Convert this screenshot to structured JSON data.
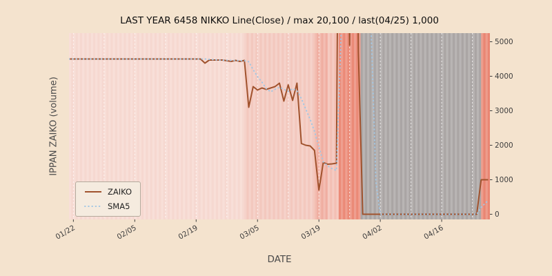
{
  "colors": {
    "figure_bg": "#f4e3ce",
    "plot_bg": "#f6d8d0",
    "grid": "#ffffff",
    "gray_band": "#9c9c9c",
    "tick_text": "#3d3d3d",
    "label_text": "#4a4a4a",
    "legend_bg": "#f5ebdf",
    "legend_border": "#b4aa9c"
  },
  "chart_data": {
    "type": "line",
    "title": "LAST YEAR 6458 NIKKO Line(Close) / max 20,100 / last(04/25) 1,000",
    "xlabel": "DATE",
    "ylabel": "IPPAN ZAIKO (volume)",
    "x_ticks": [
      {
        "label": "01/22",
        "day": 0
      },
      {
        "label": "02/05",
        "day": 14
      },
      {
        "label": "02/19",
        "day": 28
      },
      {
        "label": "03/05",
        "day": 42
      },
      {
        "label": "03/19",
        "day": 56
      },
      {
        "label": "04/02",
        "day": 70
      },
      {
        "label": "04/16",
        "day": 84
      }
    ],
    "y_ticks": [
      0,
      1000,
      2000,
      3000,
      4000,
      5000
    ],
    "xlim": [
      -1,
      95
    ],
    "ylim": [
      -150,
      5250
    ],
    "grid_interval_days": 7,
    "grid_on": true,
    "legend": {
      "position": "lower left",
      "entries": [
        "ZAIKO",
        "SMA5"
      ]
    },
    "max_value": 20100,
    "last_value": 1000,
    "last_date": "04/25",
    "series": [
      {
        "name": "ZAIKO",
        "color": "#a0522d",
        "style": "solid",
        "width": 2,
        "x": [
          -1,
          29,
          30,
          31,
          34,
          36,
          37,
          38,
          39,
          40,
          41,
          42,
          43,
          44,
          45,
          46,
          47,
          48,
          49,
          50,
          51,
          52,
          53,
          54,
          55,
          56,
          57,
          58,
          59,
          60,
          61,
          62,
          63,
          64,
          65,
          66,
          92,
          93,
          94.6
        ],
        "y": [
          4500,
          4500,
          4380,
          4470,
          4470,
          4430,
          4460,
          4430,
          4460,
          3100,
          3700,
          3600,
          3660,
          3620,
          3660,
          3700,
          3800,
          3280,
          3750,
          3300,
          3800,
          2050,
          2000,
          1980,
          1850,
          700,
          1500,
          1450,
          1460,
          1480,
          20100,
          20100,
          4900,
          20100,
          4700,
          0,
          0,
          1000,
          1000
        ]
      },
      {
        "name": "SMA5",
        "color": "#a3c7e4",
        "style": "dotted",
        "width": 2,
        "x": [
          -1,
          30,
          33,
          36,
          39,
          40,
          41,
          42,
          43,
          44,
          45,
          46,
          47,
          48,
          49,
          50,
          51,
          52,
          53,
          54,
          55,
          56,
          57,
          58,
          59,
          60,
          61,
          62,
          63,
          64,
          65,
          66,
          67,
          68,
          69,
          70,
          92,
          93,
          94.6
        ],
        "y": [
          4500,
          4500,
          4470,
          4460,
          4450,
          4420,
          4190,
          3990,
          3830,
          3640,
          3550,
          3620,
          3680,
          3620,
          3560,
          3640,
          3580,
          3350,
          3050,
          2750,
          2400,
          1950,
          1520,
          1400,
          1320,
          1270,
          5020,
          8900,
          12800,
          16700,
          16100,
          12900,
          9100,
          5000,
          940,
          0,
          0,
          200,
          400
        ]
      }
    ],
    "background_bands": [
      {
        "x0": -1,
        "x1": 95,
        "color": "#f6d8d0",
        "opacity": 1
      },
      {
        "x0": 39,
        "x1": 55,
        "color": "#f3c6bb",
        "opacity": 0.9
      },
      {
        "x0": 55,
        "x1": 58,
        "color": "#efaa9b",
        "opacity": 0.9
      },
      {
        "x0": 58,
        "x1": 60.5,
        "color": "#f3bdb0",
        "opacity": 0.9
      },
      {
        "x0": 60.5,
        "x1": 65.5,
        "color": "#ea8672",
        "opacity": 0.95
      },
      {
        "x0": 65.5,
        "x1": 93,
        "color": "#9c9c9c",
        "opacity": 0.85
      },
      {
        "x0": 93,
        "x1": 95,
        "color": "#e8826e",
        "opacity": 0.95
      }
    ]
  }
}
